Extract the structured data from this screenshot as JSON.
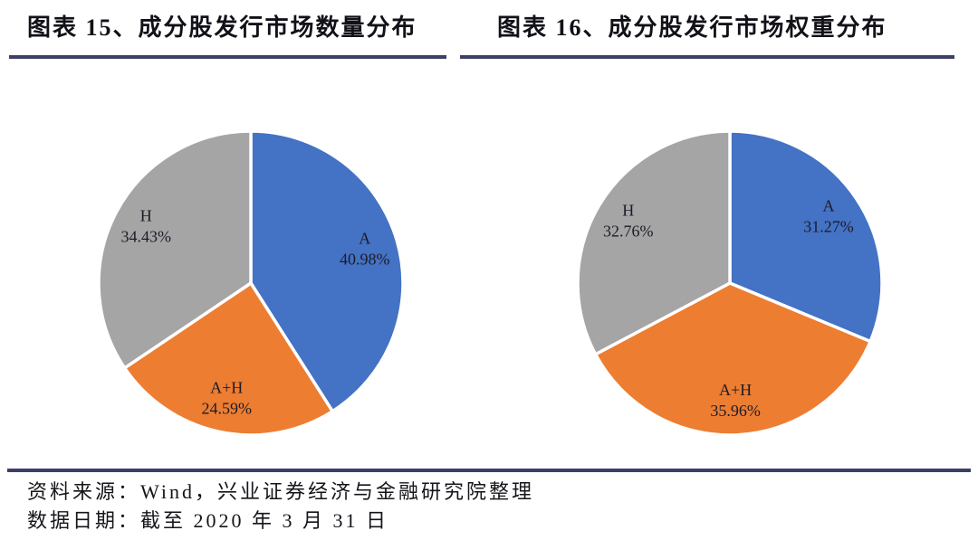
{
  "chart_data": [
    {
      "type": "pie",
      "title": "图表 15、成分股发行市场数量分布",
      "labels": [
        "A",
        "A+H",
        "H"
      ],
      "values": [
        40.98,
        24.59,
        34.43
      ],
      "percent_labels": [
        "40.98%",
        "24.59%",
        "34.43%"
      ],
      "colors": [
        "#4472C4",
        "#ED7D31",
        "#A5A5A5"
      ],
      "start_angle_deg": 0,
      "direction": "clockwise",
      "legend": "none",
      "data_label_position": "inside"
    },
    {
      "type": "pie",
      "title": "图表 16、成分股发行市场权重分布",
      "labels": [
        "A",
        "A+H",
        "H"
      ],
      "values": [
        31.27,
        35.96,
        32.76
      ],
      "percent_labels": [
        "31.27%",
        "35.96%",
        "32.76%"
      ],
      "colors": [
        "#4472C4",
        "#ED7D31",
        "#A5A5A5"
      ],
      "start_angle_deg": 0,
      "direction": "clockwise",
      "legend": "none",
      "data_label_position": "inside"
    }
  ],
  "footer": {
    "source": "资料来源：Wind，兴业证券经济与金融研究院整理",
    "date": "数据日期：截至 2020 年 3 月 31 日"
  },
  "style": {
    "rule_color": "#3c4066",
    "slice_border_color": "#ffffff",
    "label_text_color": "#1c1c28",
    "title_text_color": "#111118"
  }
}
